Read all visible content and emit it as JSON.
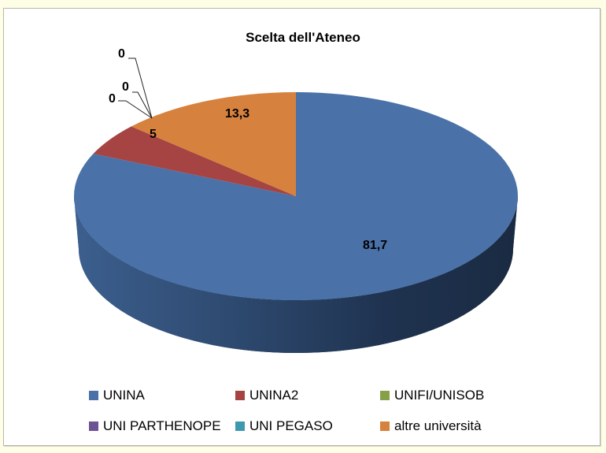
{
  "chart_data": {
    "type": "pie",
    "variant": "3d",
    "title": "Scelta dell'Ateneo",
    "categories": [
      "UNINA",
      "UNINA2",
      "UNIFI/UNISOB",
      "UNI PARTHENOPE",
      "UNI PEGASO",
      "altre università"
    ],
    "values": [
      81.7,
      5,
      0,
      0,
      0,
      13.3
    ],
    "data_labels": [
      "81,7",
      "5",
      "0",
      "0",
      "0",
      "13,3"
    ],
    "colors": [
      "#4a71a8",
      "#a64343",
      "#86a04a",
      "#6c5392",
      "#3e99b0",
      "#d6823e"
    ],
    "legend_position": "bottom",
    "start_angle": "12 o'clock, clockwise"
  },
  "legend": {
    "items": [
      {
        "label": "UNINA",
        "color": "#4a71a8"
      },
      {
        "label": "UNINA2",
        "color": "#a64343"
      },
      {
        "label": "UNIFI/UNISOB",
        "color": "#86a04a"
      },
      {
        "label": "UNI PARTHENOPE",
        "color": "#6c5392"
      },
      {
        "label": "UNI PEGASO",
        "color": "#3e99b0"
      },
      {
        "label": "altre università",
        "color": "#d6823e"
      }
    ]
  }
}
